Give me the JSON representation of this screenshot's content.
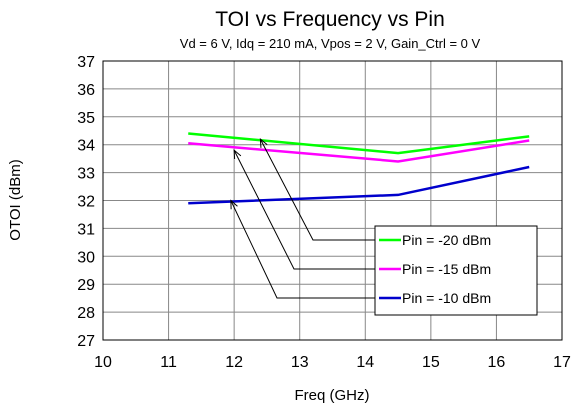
{
  "chart_data": {
    "type": "line",
    "title": "TOI vs Frequency vs Pin",
    "subtitle": "Vd = 6 V, Idq = 210 mA, Vpos = 2 V, Gain_Ctrl  = 0 V",
    "xlabel": "Freq (GHz)",
    "ylabel": "OTOI (dBm)",
    "xlim": [
      10,
      17
    ],
    "ylim": [
      27,
      37
    ],
    "xticks": [
      "10",
      "11",
      "12",
      "13",
      "14",
      "15",
      "16",
      "17"
    ],
    "yticks": [
      "27",
      "28",
      "29",
      "30",
      "31",
      "32",
      "33",
      "34",
      "35",
      "36",
      "37"
    ],
    "grid": true,
    "legend_position": "bottom-right",
    "series": [
      {
        "name": "Pin = -20 dBm",
        "color": "#00ff00",
        "x": [
          11.3,
          14.5,
          16.5
        ],
        "y": [
          34.4,
          33.7,
          34.3
        ]
      },
      {
        "name": "Pin = -15 dBm",
        "color": "#ff00ff",
        "x": [
          11.3,
          14.5,
          16.5
        ],
        "y": [
          34.05,
          33.4,
          34.15
        ]
      },
      {
        "name": "Pin = -10 dBm",
        "color": "#0000cc",
        "x": [
          11.3,
          14.5,
          16.5
        ],
        "y": [
          31.9,
          32.2,
          33.2
        ]
      }
    ],
    "annotation_arrows": [
      {
        "series": "Pin = -20 dBm",
        "to": [
          12.4,
          34.2
        ]
      },
      {
        "series": "Pin = -15 dBm",
        "to": [
          12.0,
          33.8
        ]
      },
      {
        "series": "Pin = -10 dBm",
        "to": [
          11.95,
          32.0
        ]
      }
    ]
  }
}
